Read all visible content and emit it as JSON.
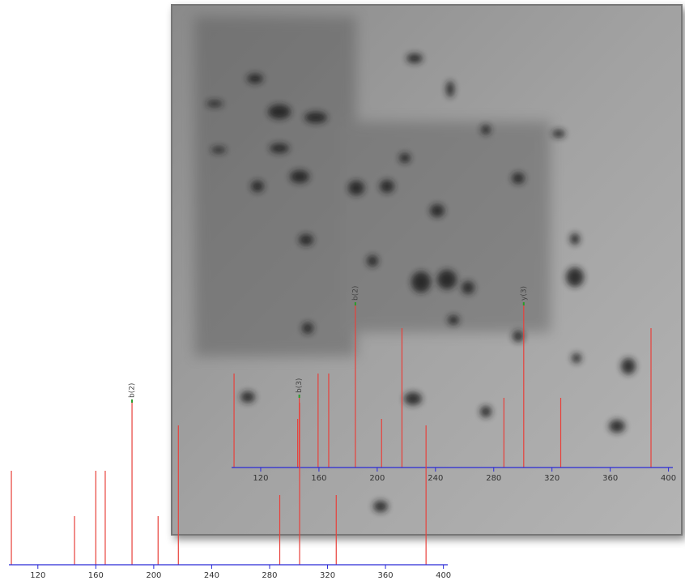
{
  "chart_data": [
    {
      "type": "spectrum",
      "x": [
        101.7,
        145.4,
        146.5,
        159.4,
        166.7,
        185,
        203,
        217,
        287,
        300.6,
        326,
        388
      ],
      "values": [
        58,
        30,
        43,
        58,
        58,
        100,
        30,
        86,
        43,
        100,
        43,
        86
      ],
      "peak_labels": [
        null,
        null,
        "b(3)",
        null,
        null,
        "b(2)",
        null,
        null,
        null,
        "y(3)",
        null,
        null
      ],
      "xlim": [
        100,
        403
      ],
      "xticks": [
        120,
        160,
        200,
        240,
        280,
        320,
        360,
        400
      ],
      "ylim": [
        0,
        100
      ],
      "color": "#e8403a",
      "axis_color": "#2a2ad6"
    },
    {
      "type": "spectrum",
      "x": [
        101.7,
        145.3,
        160,
        166.5,
        185,
        203,
        217,
        287,
        300.7,
        326,
        388
      ],
      "values": [
        58,
        30,
        58,
        58,
        100,
        30,
        86,
        43,
        100,
        43,
        86
      ],
      "peak_labels": [
        null,
        null,
        null,
        null,
        "b(2)",
        null,
        null,
        null,
        null,
        null,
        null
      ],
      "xlim": [
        100,
        403
      ],
      "xticks": [
        120,
        160,
        200,
        240,
        280,
        320,
        360,
        400
      ],
      "ylim": [
        0,
        100
      ],
      "color": "#e8403a",
      "axis_color": "#2a2ad6"
    }
  ]
}
